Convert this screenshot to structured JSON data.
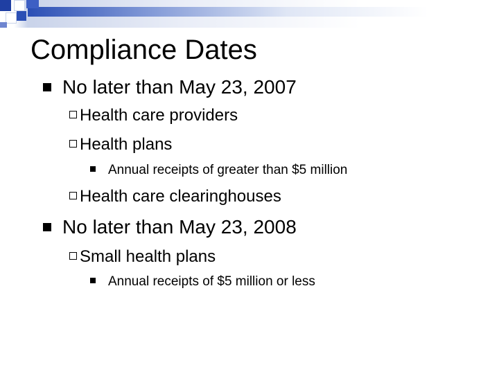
{
  "slide": {
    "title": "Compliance Dates",
    "items": [
      {
        "level": 1,
        "text": "No later than May 23, 2007"
      },
      {
        "level": 2,
        "text": "Health care providers"
      },
      {
        "level": 2,
        "text": "Health plans"
      },
      {
        "level": 3,
        "text": "Annual receipts of greater than $5 million"
      },
      {
        "level": 2,
        "text": "Health care clearinghouses"
      },
      {
        "level": 1,
        "text": "No later than May 23, 2008"
      },
      {
        "level": 2,
        "text": "Small health plans"
      },
      {
        "level": 3,
        "text": "Annual receipts of $5 million or less"
      }
    ]
  }
}
